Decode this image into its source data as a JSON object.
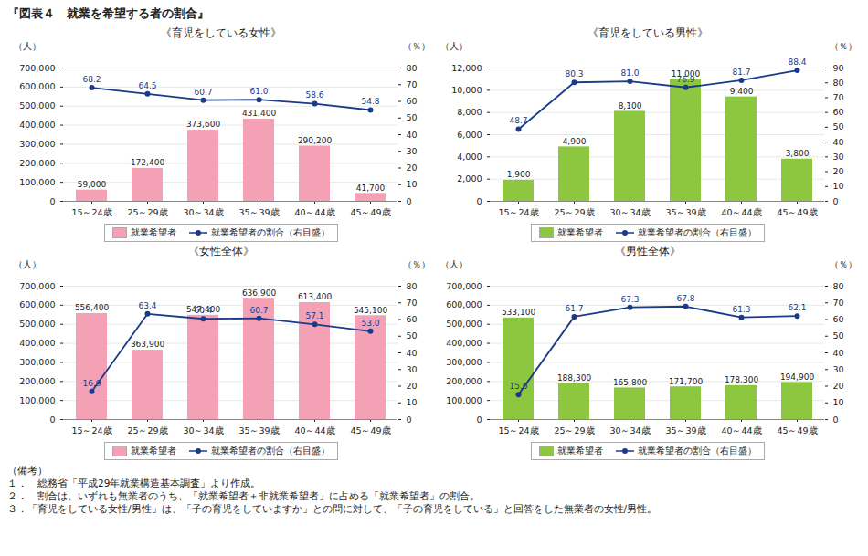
{
  "title": "『図表４　就業を希望する者の割合』",
  "annotations": [
    "（備考）",
    "１．　総務省「平成29年就業構造基本調査」より作成。",
    "２．　割合は、いずれも無業者のうち、「就業希望者＋非就業希望者」に占める「就業希望者」の割合。",
    "３．「育児をしている女性/男性」は、「子の育児をしていますか」との問に対して、「子の育児をしている」と回答をした無業者の女性/男性。"
  ],
  "chart_data": [
    {
      "type": "bar",
      "subtitle": "《育児をしている女性》",
      "categories": [
        "15～24歳",
        "25～29歳",
        "30～34歳",
        "35～39歳",
        "40～44歳",
        "45～49歳"
      ],
      "series": [
        {
          "name": "就業希望者",
          "type": "bar",
          "color": "#f4a0b5",
          "values": [
            59000,
            172400,
            373600,
            431400,
            290200,
            41700
          ],
          "value_labels": [
            "59,000",
            "172,400",
            "373,600",
            "431,400",
            "290,200",
            "41,700"
          ]
        },
        {
          "name": "就業希望者の割合（右目盛）",
          "type": "line",
          "axis": "y2",
          "marker": "circle",
          "color": "#1a3a8a",
          "values": [
            68.2,
            64.5,
            60.7,
            61.0,
            58.6,
            54.8
          ],
          "value_labels": [
            "68.2",
            "64.5",
            "60.7",
            "61.0",
            "58.6",
            "54.8"
          ]
        }
      ],
      "ylabel": "（人）",
      "y2label": "（％）",
      "ylim": [
        0,
        700000
      ],
      "yticks": [
        0,
        {
          "value": 100000,
          "label": "100,000"
        },
        {
          "value": 200000,
          "label": "200,000"
        },
        {
          "value": 300000,
          "label": "300,000"
        },
        {
          "value": 400000,
          "label": "400,000"
        },
        {
          "value": 500000,
          "label": "500,000"
        },
        {
          "value": 600000,
          "label": "600,000"
        },
        {
          "value": 700000,
          "label": "700,000"
        }
      ],
      "y2lim": [
        0,
        80
      ],
      "y2ticks": [
        0,
        10,
        20,
        30,
        40,
        50,
        60,
        70,
        80
      ],
      "grid": true,
      "legend": "bottom",
      "data_labels": true
    },
    {
      "type": "bar",
      "subtitle": "《育児をしている男性》",
      "categories": [
        "15～24歳",
        "25～29歳",
        "30～34歳",
        "35～39歳",
        "40～44歳",
        "45～49歳"
      ],
      "series": [
        {
          "name": "就業希望者",
          "type": "bar",
          "color": "#8dc63f",
          "values": [
            1900,
            4900,
            8100,
            11000,
            9400,
            3800
          ],
          "value_labels": [
            "1,900",
            "4,900",
            "8,100",
            "11,000",
            "9,400",
            "3,800"
          ]
        },
        {
          "name": "就業希望者の割合（右目盛）",
          "type": "line",
          "axis": "y2",
          "marker": "circle",
          "color": "#1a3a8a",
          "values": [
            48.7,
            80.3,
            81.0,
            76.9,
            81.7,
            88.4
          ],
          "value_labels": [
            "48.7",
            "80.3",
            "81.0",
            "76.9",
            "81.7",
            "88.4"
          ]
        }
      ],
      "ylabel": "（人）",
      "y2label": "（％）",
      "ylim": [
        0,
        12000
      ],
      "yticks": [
        0,
        {
          "value": 2000,
          "label": "2,000"
        },
        {
          "value": 4000,
          "label": "4,000"
        },
        {
          "value": 6000,
          "label": "6,000"
        },
        {
          "value": 8000,
          "label": "8,000"
        },
        {
          "value": 10000,
          "label": "10,000"
        },
        {
          "value": 12000,
          "label": "12,000"
        }
      ],
      "y2lim": [
        0,
        90
      ],
      "y2ticks": [
        0,
        10,
        20,
        30,
        40,
        50,
        60,
        70,
        80,
        90
      ],
      "grid": true,
      "legend": "bottom",
      "data_labels": true
    },
    {
      "type": "bar",
      "subtitle": "《女性全体》",
      "categories": [
        "15～24歳",
        "25～29歳",
        "30～34歳",
        "35～39歳",
        "40～44歳",
        "45～49歳"
      ],
      "series": [
        {
          "name": "就業希望者",
          "type": "bar",
          "color": "#f4a0b5",
          "values": [
            556400,
            363900,
            547400,
            636900,
            613400,
            545100
          ],
          "value_labels": [
            "556,400",
            "363,900",
            "547,400",
            "636,900",
            "613,400",
            "545,100"
          ]
        },
        {
          "name": "就業希望者の割合（右目盛）",
          "type": "line",
          "axis": "y2",
          "marker": "circle",
          "color": "#1a3a8a",
          "values": [
            16.9,
            63.4,
            60.4,
            60.7,
            57.1,
            53.0
          ],
          "value_labels": [
            "16.9",
            "63.4",
            "60.4",
            "60.7",
            "57.1",
            "53.0"
          ]
        }
      ],
      "ylabel": "（人）",
      "y2label": "（％）",
      "ylim": [
        0,
        700000
      ],
      "yticks": [
        0,
        {
          "value": 100000,
          "label": "100,000"
        },
        {
          "value": 200000,
          "label": "200,000"
        },
        {
          "value": 300000,
          "label": "300,000"
        },
        {
          "value": 400000,
          "label": "400,000"
        },
        {
          "value": 500000,
          "label": "500,000"
        },
        {
          "value": 600000,
          "label": "600,000"
        },
        {
          "value": 700000,
          "label": "700,000"
        }
      ],
      "y2lim": [
        0,
        80
      ],
      "y2ticks": [
        0,
        10,
        20,
        30,
        40,
        50,
        60,
        70,
        80
      ],
      "grid": true,
      "legend": "bottom",
      "data_labels": true
    },
    {
      "type": "bar",
      "subtitle": "《男性全体》",
      "categories": [
        "15～24歳",
        "25～29歳",
        "30～34歳",
        "35～39歳",
        "40～44歳",
        "45～49歳"
      ],
      "series": [
        {
          "name": "就業希望者",
          "type": "bar",
          "color": "#8dc63f",
          "values": [
            533100,
            188300,
            165800,
            171700,
            178300,
            194900
          ],
          "value_labels": [
            "533,100",
            "188,300",
            "165,800",
            "171,700",
            "178,300",
            "194,900"
          ]
        },
        {
          "name": "就業希望者の割合（右目盛）",
          "type": "line",
          "axis": "y2",
          "marker": "circle",
          "color": "#1a3a8a",
          "values": [
            15.0,
            61.7,
            67.3,
            67.8,
            61.3,
            62.1
          ],
          "value_labels": [
            "15.0",
            "61.7",
            "67.3",
            "67.8",
            "61.3",
            "62.1"
          ]
        }
      ],
      "ylabel": "（人）",
      "y2label": "（％）",
      "ylim": [
        0,
        700000
      ],
      "yticks": [
        0,
        {
          "value": 100000,
          "label": "100,000"
        },
        {
          "value": 200000,
          "label": "200,000"
        },
        {
          "value": 300000,
          "label": "300,000"
        },
        {
          "value": 400000,
          "label": "400,000"
        },
        {
          "value": 500000,
          "label": "500,000"
        },
        {
          "value": 600000,
          "label": "600,000"
        },
        {
          "value": 700000,
          "label": "700,000"
        }
      ],
      "y2lim": [
        0,
        80
      ],
      "y2ticks": [
        0,
        10,
        20,
        30,
        40,
        50,
        60,
        70,
        80
      ],
      "grid": true,
      "legend": "bottom",
      "data_labels": true
    }
  ]
}
